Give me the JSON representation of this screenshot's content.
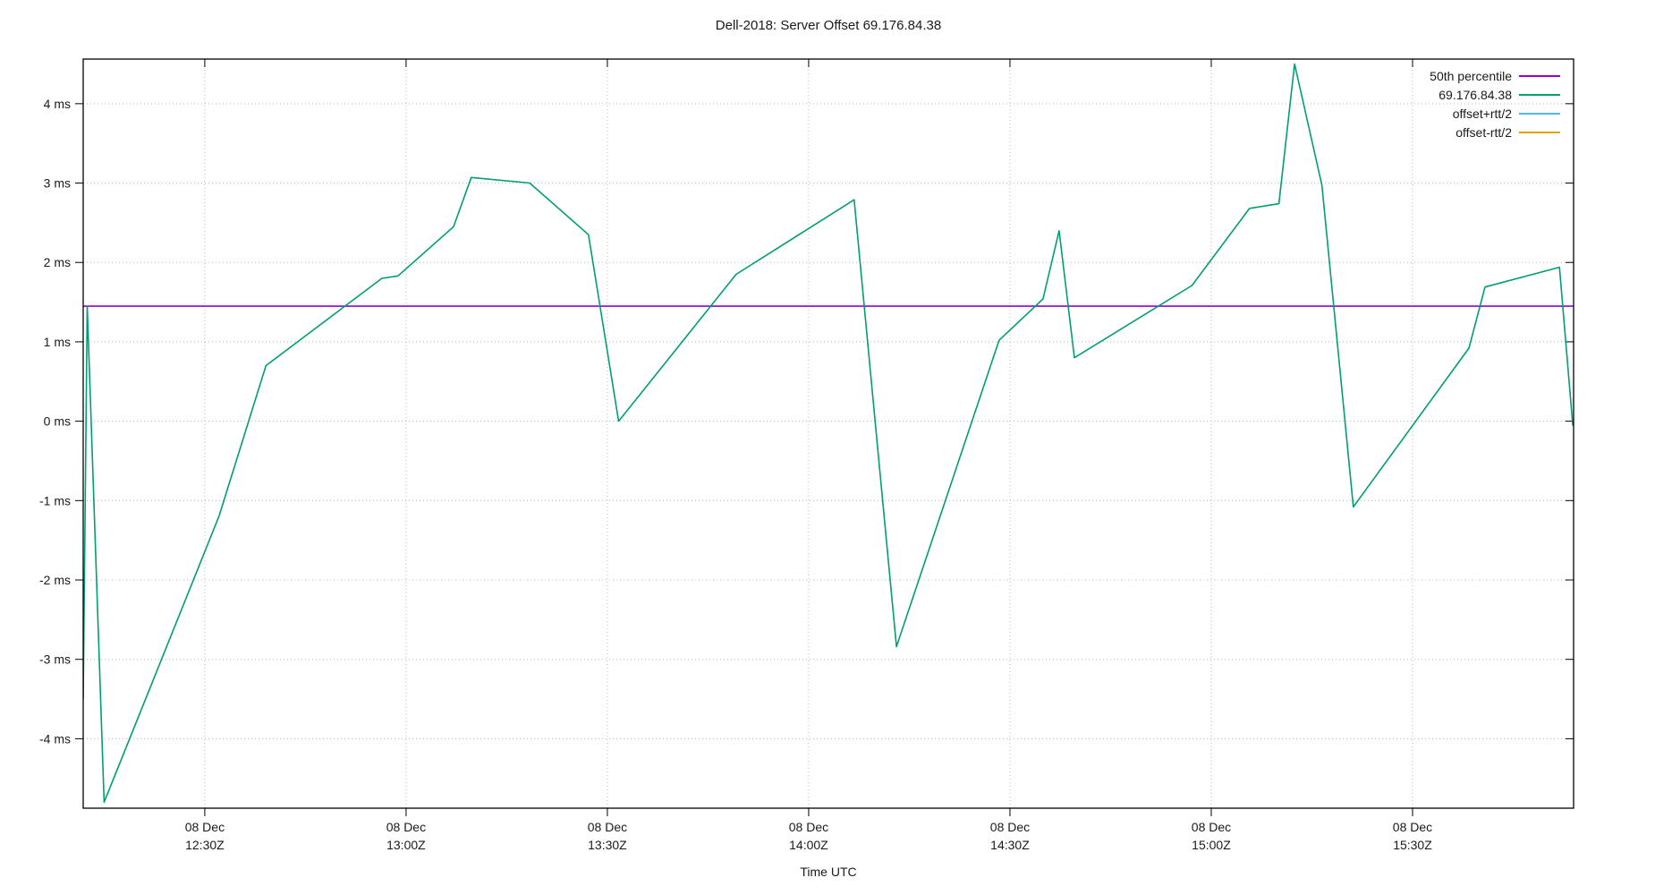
{
  "title": "Dell-2018: Server Offset 69.176.84.38",
  "colors": {
    "background": "#ffffff",
    "border": "#000000",
    "grid": "#b8b8b8",
    "text": "#1a1a1a",
    "percentile": "#9400d3",
    "offset": "#009e73",
    "offset_plus_rtt": "#56b4e9",
    "offset_minus_rtt": "#e69f00"
  },
  "chart_data": {
    "type": "line",
    "title": "Dell-2018: Server Offset 69.176.84.38",
    "xlabel": "Time UTC",
    "ylabel": "",
    "grid": "dotted",
    "legend_position": "top-right-inside",
    "x_axis": {
      "range": [
        12.198,
        15.9
      ],
      "unit": "hours UTC",
      "tick_interval_minutes": 30,
      "ticks": [
        {
          "hour": 12.5,
          "line1": "08 Dec",
          "line2": "12:30Z"
        },
        {
          "hour": 13.0,
          "line1": "08 Dec",
          "line2": "13:00Z"
        },
        {
          "hour": 13.5,
          "line1": "08 Dec",
          "line2": "13:30Z"
        },
        {
          "hour": 14.0,
          "line1": "08 Dec",
          "line2": "14:00Z"
        },
        {
          "hour": 14.5,
          "line1": "08 Dec",
          "line2": "14:30Z"
        },
        {
          "hour": 15.0,
          "line1": "08 Dec",
          "line2": "15:00Z"
        },
        {
          "hour": 15.5,
          "line1": "08 Dec",
          "line2": "15:30Z"
        }
      ]
    },
    "y_axis": {
      "range": [
        -4.875,
        4.562
      ],
      "unit": "ms",
      "ticks": [
        {
          "value": 4,
          "label": "4 ms"
        },
        {
          "value": 3,
          "label": "3 ms"
        },
        {
          "value": 2,
          "label": "2 ms"
        },
        {
          "value": 1,
          "label": "1 ms"
        },
        {
          "value": 0,
          "label": "0 ms"
        },
        {
          "value": -1,
          "label": "-1 ms"
        },
        {
          "value": -2,
          "label": "-2 ms"
        },
        {
          "value": -3,
          "label": "-3 ms"
        },
        {
          "value": -4,
          "label": "-4 ms"
        }
      ]
    },
    "series": [
      {
        "name": "50th percentile",
        "color": "#9400d3",
        "style": "hline",
        "value": 1.45,
        "points": []
      },
      {
        "name": "69.176.84.38",
        "color": "#009e73",
        "style": "line",
        "points": [
          [
            12.198,
            -3.5
          ],
          [
            12.208,
            1.45
          ],
          [
            12.25,
            -4.8
          ],
          [
            12.535,
            -1.2
          ],
          [
            12.652,
            0.7
          ],
          [
            12.94,
            1.8
          ],
          [
            12.98,
            1.83
          ],
          [
            13.118,
            2.45
          ],
          [
            13.162,
            3.07
          ],
          [
            13.307,
            3.0
          ],
          [
            13.453,
            2.35
          ],
          [
            13.528,
            0.0
          ],
          [
            13.82,
            1.85
          ],
          [
            14.113,
            2.79
          ],
          [
            14.218,
            -2.84
          ],
          [
            14.473,
            1.02
          ],
          [
            14.582,
            1.54
          ],
          [
            14.622,
            2.4
          ],
          [
            14.66,
            0.8
          ],
          [
            14.952,
            1.71
          ],
          [
            15.095,
            2.68
          ],
          [
            15.168,
            2.74
          ],
          [
            15.207,
            4.5
          ],
          [
            15.275,
            2.97
          ],
          [
            15.353,
            -1.08
          ],
          [
            15.64,
            0.92
          ],
          [
            15.68,
            1.69
          ],
          [
            15.865,
            1.94
          ],
          [
            15.898,
            -0.05
          ]
        ]
      },
      {
        "name": "offset+rtt/2",
        "color": "#56b4e9",
        "style": "line",
        "points": []
      },
      {
        "name": "offset-rtt/2",
        "color": "#e69f00",
        "style": "line",
        "points": []
      }
    ]
  }
}
